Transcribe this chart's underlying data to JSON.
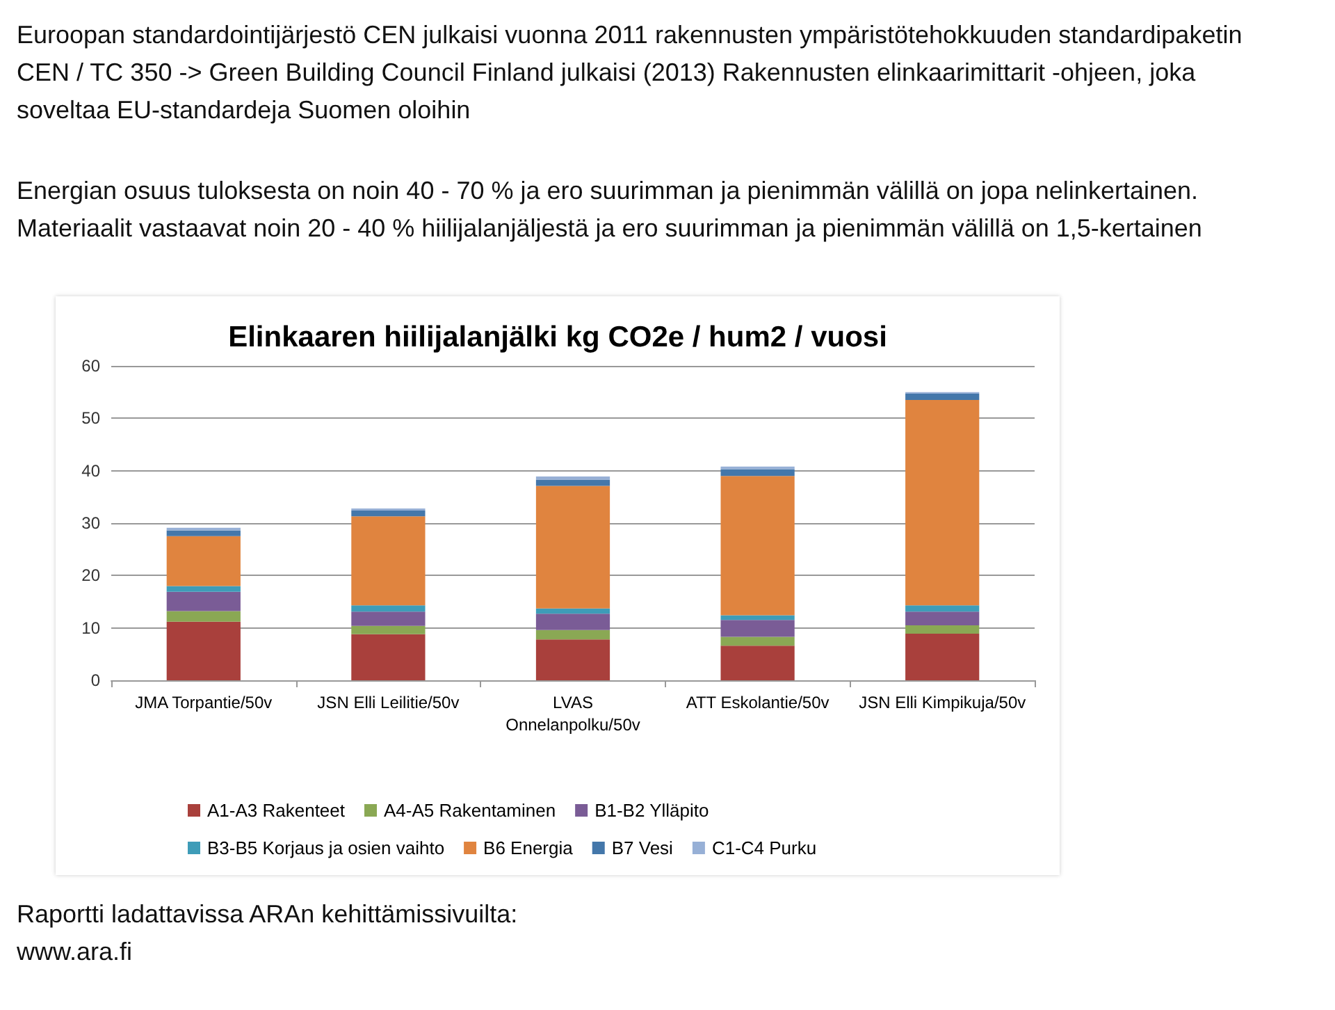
{
  "chart_data": {
    "type": "bar",
    "stacked": true,
    "title": "Elinkaaren hiilijalanjälki kg CO2e / hum2 / vuosi",
    "categories": [
      "JMA Torpantie/50v",
      "JSN Elli Leilitie/50v",
      "LVAS\nOnnelanpolku/50v",
      "ATT Eskolantie/50v",
      "JSN Elli Kimpikuja/50v"
    ],
    "series": [
      {
        "name": "A1-A3 Rakenteet",
        "color": "#a9403c",
        "values": [
          11.2,
          8.8,
          7.8,
          6.6,
          8.9
        ]
      },
      {
        "name": "A4-A5 Rakentaminen",
        "color": "#8aa854",
        "values": [
          2.0,
          1.6,
          1.8,
          1.7,
          1.6
        ]
      },
      {
        "name": "B1-B2 Ylläpito",
        "color": "#7a5c96",
        "values": [
          3.7,
          2.7,
          3.1,
          3.2,
          2.6
        ]
      },
      {
        "name": "B3-B5 Korjaus ja osien vaihto",
        "color": "#3e9cb8",
        "values": [
          1.1,
          1.2,
          1.0,
          0.9,
          1.2
        ]
      },
      {
        "name": "B6 Energia",
        "color": "#e0843f",
        "values": [
          9.5,
          17.0,
          23.4,
          26.6,
          39.2
        ]
      },
      {
        "name": "B7 Vesi",
        "color": "#4477aa",
        "values": [
          1.1,
          1.1,
          1.2,
          1.3,
          1.2
        ]
      },
      {
        "name": "C1-C4 Purku",
        "color": "#97b0d6",
        "values": [
          0.5,
          0.4,
          0.6,
          0.5,
          0.3
        ]
      }
    ],
    "ylim": [
      0,
      60
    ],
    "yticks": [
      0,
      10,
      20,
      30,
      40,
      50,
      60
    ],
    "grid": "y",
    "legend": "bottom",
    "annotations": [
      "Euroopan standardointijärjestö CEN julkaisi vuonna 2011 rakennusten ympäristötehokkuuden standardipaketin CEN / TC 350 -> Green Building Council Finland julkaisi (2013) Rakennusten elinkaarimittarit -ohjeen, joka soveltaa EU-standardeja Suomen oloihin",
      "Energian osuus tuloksesta on noin 40 - 70 % ja ero suurimman ja pienimmän välillä on jopa nelinkertainen. Materiaalit vastaavat noin 20 - 40 % hiilijalanjäljestä ja ero suurimman ja pienimmän välillä on 1,5-kertainen",
      "Raportti ladattavissa ARAn kehittämissivuilta: www.ara.fi"
    ]
  }
}
